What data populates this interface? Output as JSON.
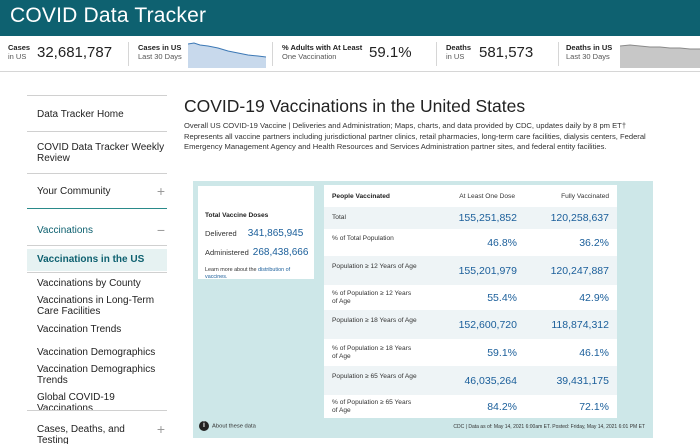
{
  "header": {
    "title": "COVID Data Tracker"
  },
  "stats": {
    "cases": {
      "label": "Cases",
      "sub": "in US",
      "value": "32,681,787"
    },
    "cases_us": {
      "label": "Cases in US",
      "sub": "Last 30 Days"
    },
    "adults": {
      "label": "% Adults with At Least",
      "sub": "One Vaccination",
      "value": "59.1%"
    },
    "deaths": {
      "label": "Deaths",
      "sub": "in US",
      "value": "581,573"
    },
    "deaths_us": {
      "label": "Deaths in US",
      "sub": "Last 30 Days"
    }
  },
  "sidebar": {
    "items": [
      {
        "label": "Data Tracker Home"
      },
      {
        "label": "COVID Data Tracker Weekly Review"
      },
      {
        "label": "Your Community"
      },
      {
        "label": "Vaccinations"
      },
      {
        "label": "Vaccinations in the US"
      },
      {
        "label": "Vaccinations by County"
      },
      {
        "label": "Vaccinations in Long-Term Care Facilities"
      },
      {
        "label": "Vaccination Trends"
      },
      {
        "label": "Vaccination Demographics"
      },
      {
        "label": "Vaccination Demographics Trends"
      },
      {
        "label": "Global COVID-19 Vaccinations"
      },
      {
        "label": "Cases, Deaths, and Testing"
      }
    ],
    "plus": "+",
    "minus": "−"
  },
  "main": {
    "title": "COVID-19 Vaccinations in the United States",
    "description": "Overall US COVID-19 Vaccine | Deliveries and Administration; Maps, charts, and data provided by CDC, updates daily by 8 pm ET† Represents all vaccine partners including jurisdictional partner clinics, retail pharmacies, long-term care facilities, dialysis centers, Federal Emergency Management Agency and Health Resources and Services Administration partner sites, and federal entity facilities."
  },
  "doses": {
    "title": "Total Vaccine Doses",
    "delivered_label": "Delivered",
    "delivered_value": "341,865,945",
    "administered_label": "Administered",
    "administered_value": "268,438,666",
    "learn_prefix": "Learn more about the ",
    "learn_link": "distribution of vaccines."
  },
  "table": {
    "headers": [
      "People Vaccinated",
      "At Least One Dose",
      "Fully Vaccinated"
    ],
    "rows": [
      {
        "label": "Total",
        "one": "155,251,852",
        "full": "120,258,637"
      },
      {
        "label": "% of Total Population",
        "one": "46.8%",
        "full": "36.2%"
      },
      {
        "label": "Population ≥ 12 Years of Age",
        "one": "155,201,979",
        "full": "120,247,887"
      },
      {
        "label": "% of Population ≥ 12 Years of Age",
        "one": "55.4%",
        "full": "42.9%"
      },
      {
        "label": "Population ≥ 18 Years of Age",
        "one": "152,600,720",
        "full": "118,874,312"
      },
      {
        "label": "% of Population ≥ 18 Years of Age",
        "one": "59.1%",
        "full": "46.1%"
      },
      {
        "label": "Population ≥ 65 Years of Age",
        "one": "46,035,264",
        "full": "39,431,175"
      },
      {
        "label": "% of Population ≥ 65 Years of Age",
        "one": "84.2%",
        "full": "72.1%"
      }
    ]
  },
  "footer": {
    "about": "About these data",
    "about_icon": "info-icon",
    "dates": "CDC | Data as of: May 14, 2021 6:00am ET. Posted: Friday, May 14, 2021 6:01 PM ET"
  },
  "colors": {
    "header": "#0e6170",
    "panel": "#cde7e8",
    "value": "#1a5e9a",
    "active": "#0e6170"
  }
}
